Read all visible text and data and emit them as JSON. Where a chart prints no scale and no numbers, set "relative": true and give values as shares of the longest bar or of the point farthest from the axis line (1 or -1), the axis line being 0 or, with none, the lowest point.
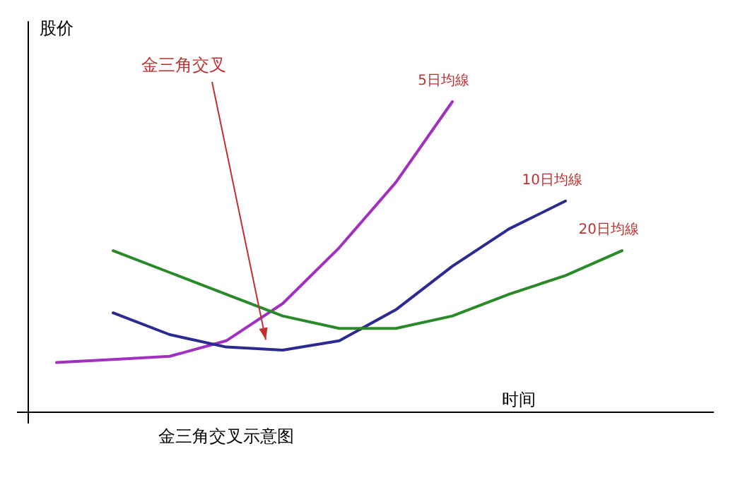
{
  "chart_data": {
    "type": "line",
    "relative": true,
    "title": "金三角交叉示意图",
    "xlabel": "时间",
    "ylabel": "股价",
    "categories": [
      null,
      null,
      null,
      null,
      null,
      null,
      null,
      null,
      null,
      null,
      null
    ],
    "series": [
      {
        "name": "5日均線",
        "color": "#a030c0",
        "values": [
          0.16,
          0.17,
          0.18,
          0.23,
          0.35,
          0.53,
          0.74,
          1,
          null,
          null,
          null
        ]
      },
      {
        "name": "10日均線",
        "color": "#2a2a90",
        "values": [
          null,
          0.32,
          0.25,
          0.21,
          0.2,
          0.23,
          0.33,
          0.47,
          0.59,
          0.68,
          null
        ]
      },
      {
        "name": "20日均線",
        "color": "#2a8a2a",
        "values": [
          null,
          0.52,
          0.45,
          0.38,
          0.31,
          0.27,
          0.27,
          0.31,
          0.38,
          0.44,
          0.52
        ]
      }
    ],
    "annotations": [
      "金三角交叉"
    ]
  }
}
